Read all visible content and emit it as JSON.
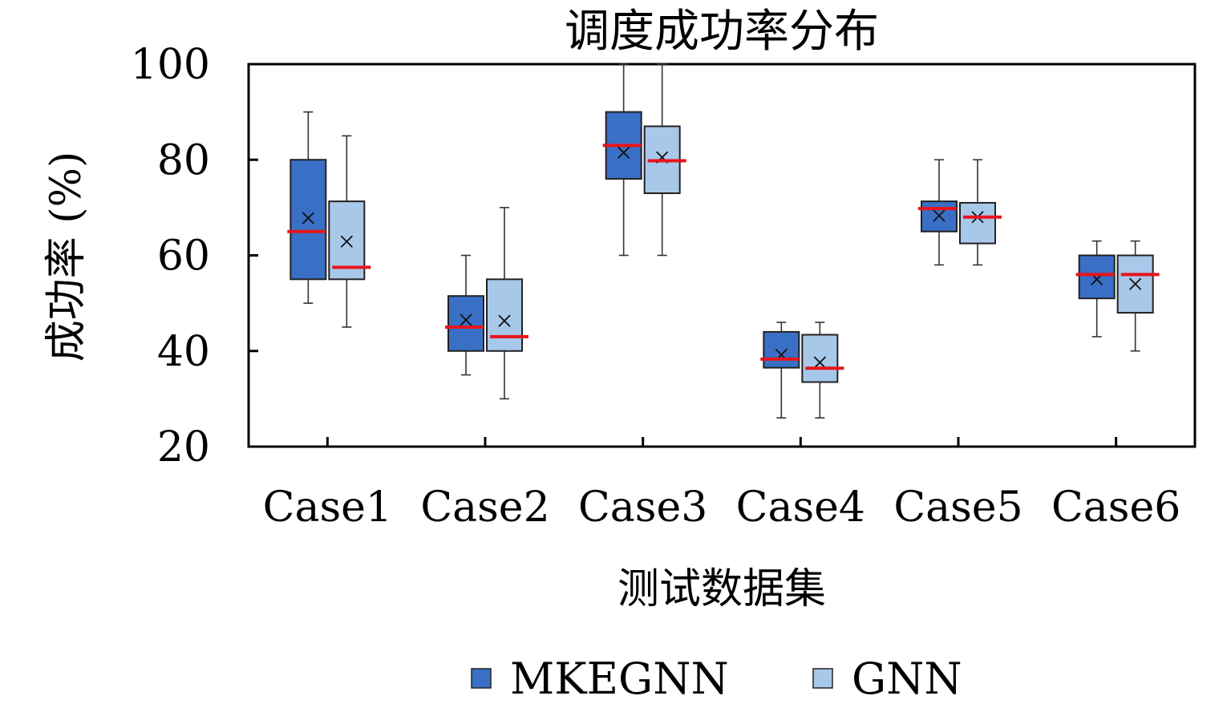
{
  "chart_data": {
    "type": "box",
    "title": "调度成功率分布",
    "xlabel": "测试数据集",
    "ylabel": "成功率 (%)",
    "ylim": [
      20,
      100
    ],
    "yticks": [
      20,
      40,
      60,
      80,
      100
    ],
    "categories": [
      "Case1",
      "Case2",
      "Case3",
      "Case4",
      "Case5",
      "Case6"
    ],
    "grid": false,
    "legend_position": "bottom",
    "colors": {
      "MKEGNN": "#3a6fc6",
      "GNN": "#a8c8ea",
      "median": "#e8141b",
      "whisker": "#333333"
    },
    "series": [
      {
        "name": "MKEGNN",
        "boxes": [
          {
            "min": 50,
            "q1": 55,
            "median": 65,
            "q3": 80,
            "max": 90,
            "mean": 67.8
          },
          {
            "min": 35,
            "q1": 40,
            "median": 45,
            "q3": 51.5,
            "max": 60,
            "mean": 46.5
          },
          {
            "min": 60,
            "q1": 76,
            "median": 83,
            "q3": 90,
            "max": 100,
            "mean": 81.5
          },
          {
            "min": 26,
            "q1": 36.5,
            "median": 38.3,
            "q3": 44,
            "max": 46,
            "mean": 39.2
          },
          {
            "min": 58,
            "q1": 65,
            "median": 69.8,
            "q3": 71.3,
            "max": 80,
            "mean": 68.3
          },
          {
            "min": 43,
            "q1": 51,
            "median": 56,
            "q3": 60,
            "max": 63,
            "mean": 55
          }
        ]
      },
      {
        "name": "GNN",
        "boxes": [
          {
            "min": 45,
            "q1": 55,
            "median": 57.5,
            "q3": 71.3,
            "max": 85,
            "mean": 62.9
          },
          {
            "min": 30,
            "q1": 40,
            "median": 43,
            "q3": 55,
            "max": 70,
            "mean": 46.3
          },
          {
            "min": 60,
            "q1": 73,
            "median": 79.8,
            "q3": 87,
            "max": 100,
            "mean": 80.5
          },
          {
            "min": 26,
            "q1": 33.5,
            "median": 36.4,
            "q3": 43.4,
            "max": 46,
            "mean": 37.6
          },
          {
            "min": 58,
            "q1": 62.5,
            "median": 68,
            "q3": 71,
            "max": 80,
            "mean": 68
          },
          {
            "min": 40,
            "q1": 48,
            "median": 56,
            "q3": 60,
            "max": 63,
            "mean": 54
          }
        ]
      }
    ]
  }
}
